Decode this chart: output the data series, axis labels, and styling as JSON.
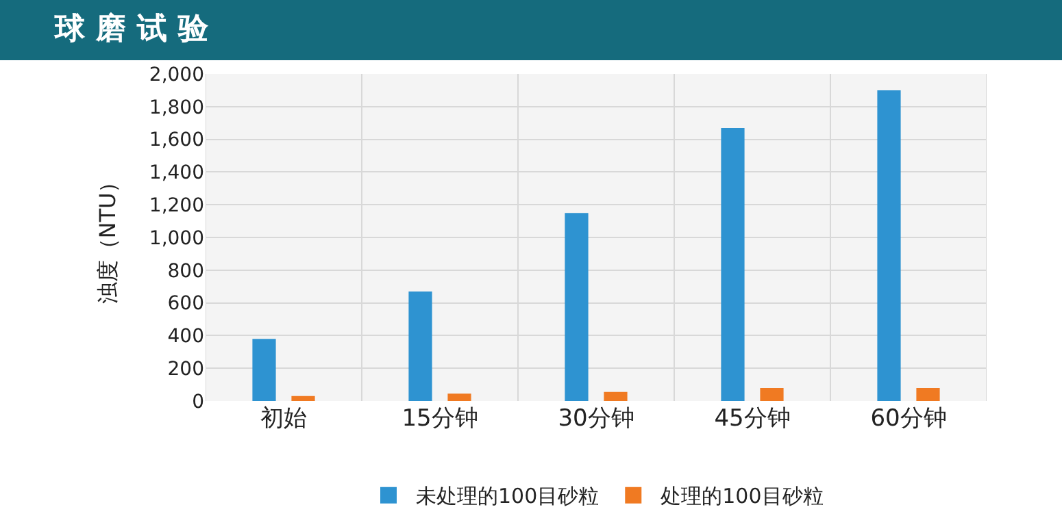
{
  "chart_data": {
    "type": "bar",
    "title": "球磨试验",
    "ylabel": "浊度（NTU）",
    "categories": [
      "初始",
      "15分钟",
      "30分钟",
      "45分钟",
      "60分钟"
    ],
    "series": [
      {
        "name": "未处理的100目砂粒",
        "color": "#2e93d1",
        "values": [
          380,
          670,
          1150,
          1670,
          1900
        ]
      },
      {
        "name": "处理的100目砂粒",
        "color": "#f07a22",
        "values": [
          30,
          45,
          55,
          80,
          80
        ]
      }
    ],
    "ylim": [
      0,
      2000
    ],
    "yticks": [
      0,
      {
        "value": 200,
        "label": "200"
      },
      {
        "value": 400,
        "label": "400"
      },
      {
        "value": 600,
        "label": "600"
      },
      {
        "value": 800,
        "label": "800"
      },
      {
        "value": 1000,
        "label": "1,000"
      },
      {
        "value": 1200,
        "label": "1,200"
      },
      {
        "value": 1400,
        "label": "1,400"
      },
      {
        "value": 1600,
        "label": "1,600"
      },
      {
        "value": 1800,
        "label": "1,800"
      },
      {
        "value": 2000,
        "label": "2,000"
      }
    ],
    "grid": true,
    "legend": "bottom"
  }
}
